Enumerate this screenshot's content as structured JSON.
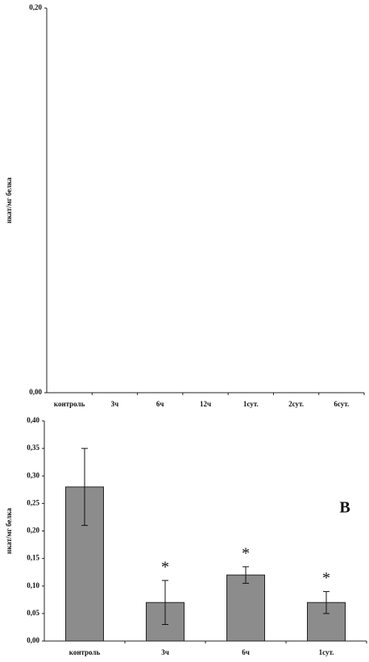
{
  "chart_data": [
    {
      "type": "bar",
      "ylabel": "нкат/мг белка",
      "categories": [
        "контроль",
        "3ч",
        "6ч",
        "12ч",
        "1сут.",
        "2сут.",
        "6сут."
      ],
      "values": [
        0,
        0,
        0,
        0,
        0,
        0,
        0
      ],
      "color": "#8c8c8c",
      "ylim": [
        0,
        0.2
      ],
      "yticks": [
        {
          "value": 0,
          "label": "0,00"
        },
        {
          "value": 0.2,
          "label": "0,20"
        }
      ]
    },
    {
      "type": "bar",
      "ylabel": "нкат/мг белка",
      "panel": "B",
      "categories": [
        "контроль",
        "3ч",
        "6ч",
        "1сут."
      ],
      "values": [
        0.28,
        0.07,
        0.12,
        0.07
      ],
      "errors": [
        0.07,
        0.04,
        0.015,
        0.02
      ],
      "significance": [
        null,
        "*",
        "*",
        "*"
      ],
      "color": "#8c8c8c",
      "ylim": [
        0,
        0.4
      ],
      "yticks": [
        {
          "value": 0,
          "label": "0,00"
        },
        {
          "value": 0.05,
          "label": "0,05"
        },
        {
          "value": 0.1,
          "label": "0,10"
        },
        {
          "value": 0.15,
          "label": "0,15"
        },
        {
          "value": 0.2,
          "label": "0,20"
        },
        {
          "value": 0.25,
          "label": "0,25"
        },
        {
          "value": 0.3,
          "label": "0,30"
        },
        {
          "value": 0.35,
          "label": "0,35"
        },
        {
          "value": 0.4,
          "label": "0,40"
        }
      ]
    }
  ]
}
